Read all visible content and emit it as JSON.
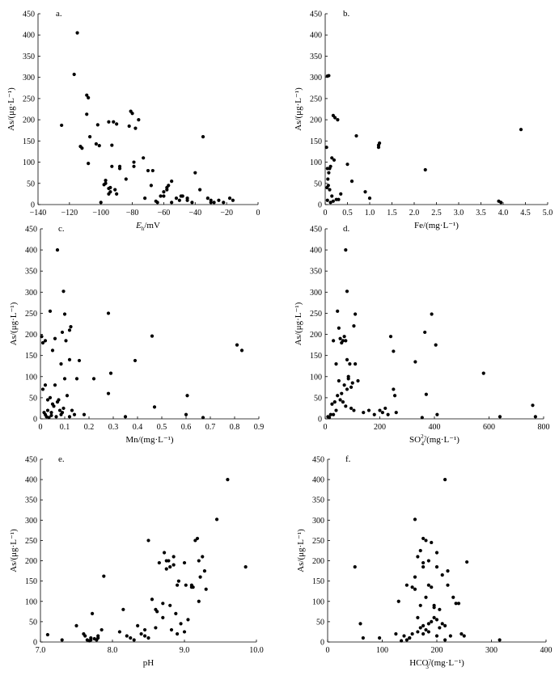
{
  "chart_data": [
    {
      "type": "scatter",
      "panel": "a.",
      "xlabel_main": "E",
      "xlabel_sub": "h",
      "xlabel_rest": "/mV",
      "ylabel": "As/(μg·L⁻¹)",
      "xlim": [
        -140,
        0
      ],
      "ylim": [
        0,
        450
      ],
      "xticks": [
        -140,
        -120,
        -100,
        -80,
        -60,
        -40,
        -20,
        0
      ],
      "yticks": [
        0,
        50,
        100,
        150,
        200,
        250,
        300,
        350,
        400,
        450
      ],
      "xtick_labels": [
        "−140",
        "−120",
        "−100",
        "−80",
        "−60",
        "−40",
        "−20",
        "0"
      ],
      "ytick_labels": [
        "0",
        "50",
        "100",
        "150",
        "200",
        "250",
        "300",
        "350",
        "400",
        "450"
      ],
      "x": [
        -125,
        -115,
        -117,
        -109,
        -108,
        -107,
        -113,
        -112,
        -109,
        -108,
        -103,
        -101,
        -102,
        -97,
        -98,
        -95,
        -93,
        -93,
        -95,
        -95,
        -94,
        -94,
        -92,
        -91,
        -90,
        -88,
        -90,
        -88,
        -84,
        -82,
        -81,
        -80,
        -78,
        -79,
        -79,
        -76,
        -73,
        -72,
        -70,
        -68,
        -67,
        -64,
        -62,
        -60,
        -58,
        -58,
        -57,
        -55,
        -52,
        -49,
        -48,
        -45,
        -40,
        -37,
        -35,
        -32,
        -30,
        -28,
        -25,
        -22,
        -18,
        -16,
        -60,
        -55,
        -50,
        -45,
        -42,
        -100,
        -97,
        -30,
        -65
      ],
      "y": [
        187,
        405,
        307,
        258,
        252,
        160,
        137,
        133,
        213,
        97,
        143,
        139,
        188,
        57,
        47,
        195,
        140,
        90,
        38,
        25,
        40,
        30,
        195,
        35,
        25,
        90,
        190,
        85,
        60,
        185,
        220,
        215,
        180,
        100,
        90,
        200,
        110,
        15,
        80,
        45,
        80,
        5,
        20,
        30,
        35,
        40,
        45,
        55,
        15,
        20,
        20,
        10,
        75,
        35,
        160,
        15,
        5,
        5,
        10,
        5,
        15,
        10,
        20,
        5,
        10,
        15,
        5,
        5,
        50,
        10,
        8
      ]
    },
    {
      "type": "scatter",
      "panel": "b.",
      "xlabel": "Fe/(mg·L⁻¹)",
      "ylabel": "As/(μg·L⁻¹)",
      "xlim": [
        0,
        5
      ],
      "ylim": [
        0,
        450
      ],
      "xticks": [
        0,
        0.5,
        1,
        1.5,
        2,
        2.5,
        3,
        3.5,
        4,
        4.5,
        5
      ],
      "yticks": [
        0,
        50,
        100,
        150,
        200,
        250,
        300,
        350,
        400,
        450
      ],
      "xtick_labels": [
        "0",
        "0.5",
        "1.0",
        "1.5",
        "2.0",
        "2.5",
        "3.0",
        "3.5",
        "4.0",
        "4.5",
        "5.0"
      ],
      "ytick_labels": [
        "0",
        "50",
        "100",
        "150",
        "200",
        "250",
        "300",
        "350",
        "400",
        "450"
      ],
      "x": [
        0.05,
        0.08,
        0.18,
        0.22,
        0.28,
        0.15,
        0.2,
        0.12,
        0.1,
        0.05,
        0.08,
        0.06,
        0.04,
        0.1,
        0.15,
        0.3,
        0.35,
        0.5,
        0.6,
        0.7,
        0.9,
        1.0,
        1.2,
        1.2,
        1.22,
        2.25,
        3.9,
        3.95,
        4.4,
        0.05,
        0.12,
        0.18,
        0.25,
        0.07,
        0.03
      ],
      "y": [
        303,
        304,
        210,
        205,
        200,
        110,
        105,
        90,
        85,
        85,
        75,
        60,
        40,
        35,
        20,
        12,
        25,
        95,
        55,
        162,
        30,
        15,
        140,
        135,
        145,
        82,
        8,
        5,
        177,
        10,
        5,
        8,
        12,
        45,
        135
      ]
    },
    {
      "type": "scatter",
      "panel": "c.",
      "xlabel": "Mn/(mg·L⁻¹)",
      "ylabel": "As/(μg·L⁻¹)",
      "xlim": [
        0,
        0.9
      ],
      "ylim": [
        0,
        450
      ],
      "xticks": [
        0,
        0.1,
        0.2,
        0.3,
        0.4,
        0.5,
        0.6,
        0.7,
        0.8,
        0.9
      ],
      "yticks": [
        0,
        50,
        100,
        150,
        200,
        250,
        300,
        350,
        400,
        450
      ],
      "xtick_labels": [
        "0",
        "0.1",
        "0.2",
        "0.3",
        "0.4",
        "0.5",
        "0.6",
        "0.7",
        "0.8",
        "0.9"
      ],
      "ytick_labels": [
        "0",
        "50",
        "100",
        "150",
        "200",
        "250",
        "300",
        "350",
        "400",
        "450"
      ],
      "x": [
        0.07,
        0.095,
        0.04,
        0.1,
        0.12,
        0.125,
        0.28,
        0.46,
        0.83,
        0.81,
        0.005,
        0.01,
        0.02,
        0.05,
        0.06,
        0.085,
        0.09,
        0.105,
        0.12,
        0.15,
        0.16,
        0.22,
        0.29,
        0.39,
        0.28,
        0.47,
        0.605,
        0.6,
        0.67,
        0.35,
        0.01,
        0.02,
        0.03,
        0.04,
        0.05,
        0.06,
        0.07,
        0.08,
        0.09,
        0.1,
        0.11,
        0.12,
        0.13,
        0.14,
        0.18,
        0.02,
        0.03,
        0.045,
        0.055,
        0.065,
        0.075,
        0.085,
        0.095,
        0.025,
        0.035,
        0.045,
        0.015
      ],
      "y": [
        400,
        302,
        255,
        248,
        210,
        218,
        250,
        196,
        162,
        175,
        195,
        180,
        185,
        162,
        190,
        130,
        205,
        185,
        140,
        95,
        138,
        95,
        108,
        138,
        60,
        28,
        55,
        10,
        3,
        5,
        70,
        80,
        45,
        50,
        35,
        80,
        40,
        20,
        15,
        95,
        55,
        5,
        20,
        10,
        10,
        10,
        20,
        15,
        30,
        5,
        45,
        10,
        25,
        5,
        3,
        8,
        15
      ]
    },
    {
      "type": "scatter",
      "panel": "d.",
      "xlabel_main": "SO",
      "xlabel_sub": "4",
      "xlabel_sup": "2−",
      "xlabel_rest": "/(mg·L⁻¹)",
      "ylabel": "As/(μg·L⁻¹)",
      "xlim": [
        0,
        800
      ],
      "ylim": [
        0,
        450
      ],
      "xticks": [
        0,
        200,
        400,
        600,
        800
      ],
      "yticks": [
        0,
        50,
        100,
        150,
        200,
        250,
        300,
        350,
        400,
        450
      ],
      "xtick_labels": [
        "0",
        "200",
        "400",
        "600",
        "800"
      ],
      "ytick_labels": [
        "0",
        "50",
        "100",
        "150",
        "200",
        "250",
        "300",
        "350",
        "400",
        "450"
      ],
      "x": [
        75,
        80,
        45,
        110,
        105,
        390,
        365,
        405,
        250,
        240,
        330,
        580,
        760,
        770,
        640,
        410,
        370,
        355,
        250,
        255,
        260,
        20,
        30,
        40,
        50,
        55,
        60,
        65,
        70,
        75,
        80,
        85,
        90,
        95,
        100,
        110,
        120,
        140,
        160,
        180,
        200,
        210,
        220,
        230,
        10,
        15,
        25,
        35,
        45,
        55,
        65,
        75,
        85,
        95,
        105,
        60,
        70,
        80,
        50,
        40,
        30
      ],
      "y": [
        400,
        302,
        255,
        248,
        220,
        248,
        205,
        175,
        160,
        195,
        135,
        108,
        32,
        5,
        5,
        10,
        58,
        3,
        70,
        55,
        15,
        10,
        185,
        130,
        215,
        190,
        180,
        185,
        195,
        185,
        140,
        100,
        130,
        75,
        85,
        130,
        90,
        15,
        20,
        10,
        20,
        15,
        25,
        10,
        5,
        3,
        35,
        40,
        55,
        45,
        40,
        30,
        95,
        25,
        20,
        60,
        80,
        70,
        90,
        20,
        10
      ]
    },
    {
      "type": "scatter",
      "panel": "e.",
      "xlabel": "pH",
      "ylabel": "As/(μg·L⁻¹)",
      "xlim": [
        7,
        10
      ],
      "ylim": [
        0,
        450
      ],
      "xticks": [
        7,
        8,
        9,
        10
      ],
      "yticks": [
        0,
        50,
        100,
        150,
        200,
        250,
        300,
        350,
        400,
        450
      ],
      "xtick_labels": [
        "7.0",
        "8.0",
        "9.0",
        "10.0"
      ],
      "ytick_labels": [
        "0",
        "50",
        "100",
        "150",
        "200",
        "250",
        "300",
        "350",
        "400",
        "450"
      ],
      "x": [
        7.1,
        7.3,
        7.5,
        7.6,
        7.62,
        7.65,
        7.68,
        7.7,
        7.72,
        7.75,
        7.78,
        7.8,
        7.85,
        7.88,
        8.1,
        8.15,
        8.2,
        8.25,
        8.3,
        8.35,
        8.4,
        8.45,
        8.5,
        8.55,
        8.6,
        8.62,
        8.65,
        8.7,
        8.72,
        8.75,
        8.78,
        8.8,
        8.82,
        8.85,
        8.88,
        8.9,
        8.92,
        8.95,
        9.0,
        9.02,
        9.05,
        9.1,
        9.12,
        9.15,
        9.18,
        9.2,
        9.22,
        9.25,
        9.28,
        9.3,
        9.45,
        9.6,
        9.85,
        8.5,
        8.6,
        8.7,
        8.8,
        8.9,
        9.0,
        8.45,
        8.75,
        8.85,
        9.1,
        9.2,
        7.7,
        7.8
      ],
      "y": [
        18,
        5,
        40,
        20,
        15,
        5,
        3,
        10,
        70,
        8,
        5,
        15,
        30,
        162,
        25,
        80,
        15,
        10,
        5,
        40,
        20,
        30,
        250,
        105,
        80,
        75,
        195,
        95,
        220,
        180,
        200,
        185,
        30,
        190,
        70,
        140,
        150,
        45,
        195,
        140,
        55,
        140,
        135,
        250,
        255,
        200,
        160,
        210,
        175,
        130,
        302,
        400,
        185,
        10,
        35,
        60,
        90,
        20,
        25,
        15,
        200,
        210,
        135,
        100,
        5,
        10
      ]
    },
    {
      "type": "scatter",
      "panel": "f.",
      "xlabel_main": "HCO",
      "xlabel_sub": "3",
      "xlabel_sup": "−",
      "xlabel_rest": "/(mg·L⁻¹)",
      "ylabel": "As/(μg·L⁻¹)",
      "xlim": [
        0,
        400
      ],
      "ylim": [
        0,
        450
      ],
      "xticks": [
        0,
        100,
        200,
        300,
        400
      ],
      "yticks": [
        0,
        50,
        100,
        150,
        200,
        250,
        300,
        350,
        400,
        450
      ],
      "xtick_labels": [
        "0",
        "100",
        "200",
        "300",
        "400"
      ],
      "ytick_labels": [
        "0",
        "50",
        "100",
        "150",
        "200",
        "250",
        "300",
        "350",
        "400",
        "450"
      ],
      "x": [
        215,
        160,
        175,
        180,
        170,
        165,
        190,
        200,
        255,
        220,
        210,
        175,
        185,
        200,
        160,
        145,
        130,
        125,
        140,
        150,
        155,
        160,
        170,
        175,
        180,
        185,
        190,
        195,
        200,
        205,
        210,
        215,
        220,
        230,
        240,
        245,
        250,
        60,
        65,
        95,
        50,
        315,
        135,
        145,
        150,
        155,
        165,
        170,
        175,
        180,
        185,
        190,
        195,
        200,
        165,
        175,
        185,
        195,
        205,
        215,
        225,
        235
      ],
      "y": [
        400,
        302,
        255,
        250,
        225,
        210,
        245,
        220,
        197,
        175,
        165,
        195,
        200,
        185,
        160,
        140,
        100,
        20,
        15,
        10,
        135,
        130,
        90,
        185,
        110,
        140,
        135,
        90,
        55,
        35,
        45,
        40,
        140,
        110,
        95,
        20,
        15,
        45,
        10,
        10,
        185,
        5,
        3,
        5,
        10,
        20,
        25,
        35,
        40,
        30,
        45,
        50,
        60,
        15,
        60,
        20,
        25,
        85,
        80,
        5,
        15,
        95
      ]
    }
  ]
}
